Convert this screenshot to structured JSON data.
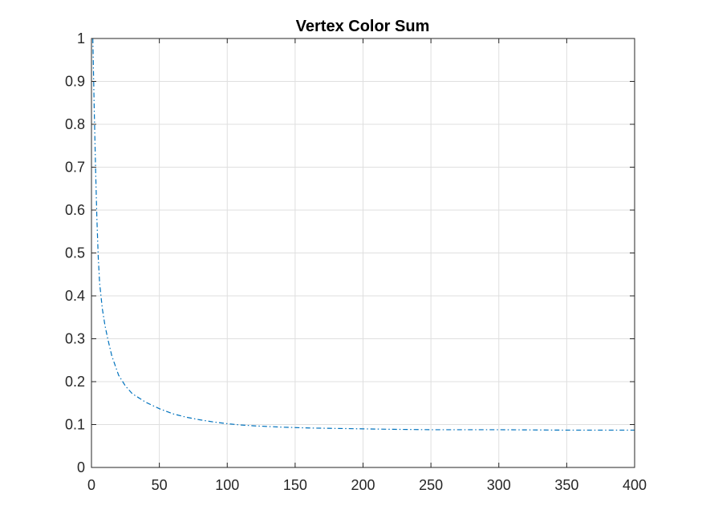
{
  "chart_data": {
    "type": "line",
    "title": "Vertex Color Sum",
    "xlabel": "",
    "ylabel": "",
    "xlim": [
      0,
      400
    ],
    "ylim": [
      0,
      1
    ],
    "x_ticks": [
      0,
      50,
      100,
      150,
      200,
      250,
      300,
      350,
      400
    ],
    "y_ticks": [
      0,
      0.1,
      0.2,
      0.3,
      0.4,
      0.5,
      0.6,
      0.7,
      0.8,
      0.9,
      1
    ],
    "x_tick_labels": [
      "0",
      "50",
      "100",
      "150",
      "200",
      "250",
      "300",
      "350",
      "400"
    ],
    "y_tick_labels": [
      "0",
      "0.1",
      "0.2",
      "0.3",
      "0.4",
      "0.5",
      "0.6",
      "0.7",
      "0.8",
      "0.9",
      "1"
    ],
    "grid": true,
    "legend": "none",
    "series": [
      {
        "color": "#0072BD",
        "line_style": "dash-dot",
        "x": [
          1,
          2,
          3,
          4,
          5,
          6,
          8,
          10,
          12,
          15,
          20,
          25,
          30,
          40,
          50,
          60,
          70,
          80,
          90,
          100,
          110,
          120,
          140,
          160,
          180,
          200,
          220,
          250,
          300,
          350,
          400
        ],
        "y": [
          1.0,
          0.84,
          0.7,
          0.58,
          0.49,
          0.43,
          0.37,
          0.33,
          0.3,
          0.26,
          0.215,
          0.19,
          0.172,
          0.152,
          0.137,
          0.125,
          0.117,
          0.111,
          0.106,
          0.102,
          0.099,
          0.097,
          0.094,
          0.092,
          0.091,
          0.09,
          0.089,
          0.088,
          0.088,
          0.087,
          0.087
        ]
      }
    ]
  }
}
